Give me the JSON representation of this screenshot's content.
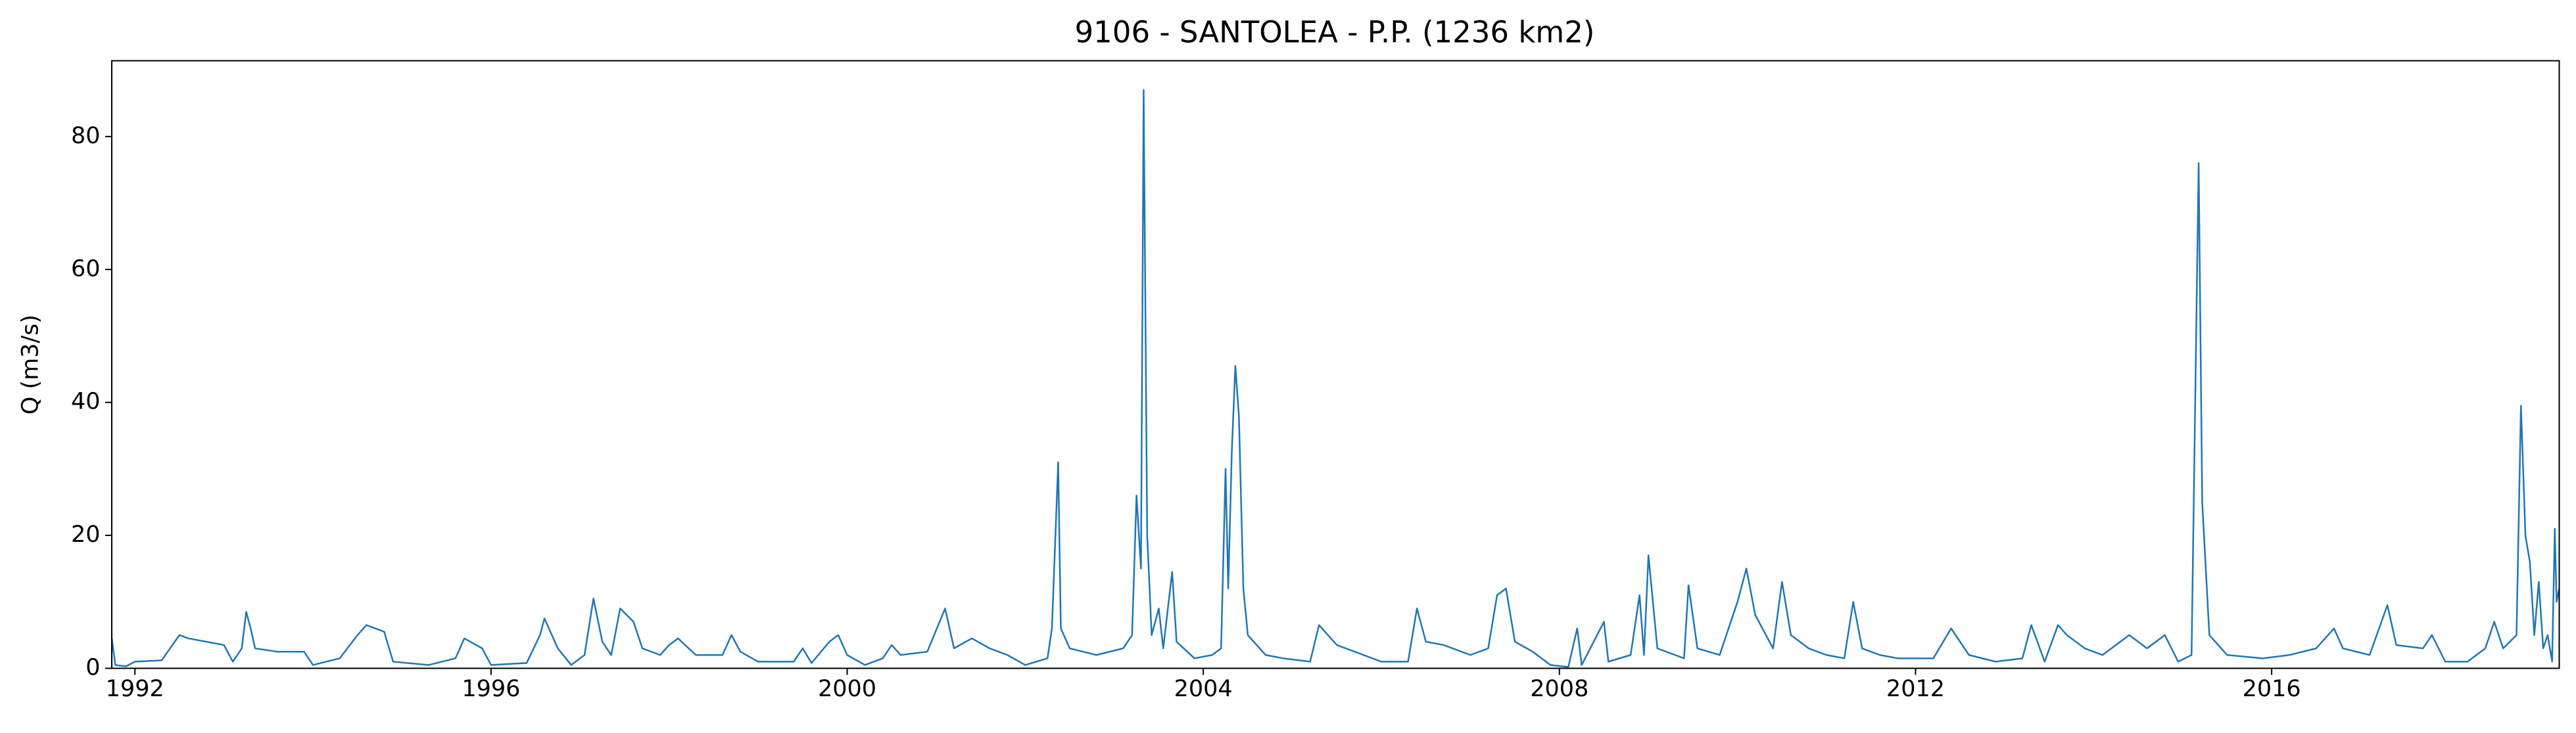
{
  "chart_data": {
    "type": "line",
    "title": "9106 - SANTOLEA - P.P. (1236 km2)",
    "ylabel": "Q (m3/s)",
    "xlim": [
      1991.74,
      2019.23
    ],
    "xticks": [
      1992,
      1996,
      2000,
      2004,
      2008,
      2012,
      2016
    ],
    "ylim": [
      0,
      91.4
    ],
    "yticks": [
      0,
      20,
      40,
      60,
      80
    ],
    "grid": false,
    "series": [
      {
        "name": "Q",
        "color": "#1f77b4",
        "x": [
          1991.74,
          1991.78,
          1991.9,
          1992.0,
          1992.3,
          1992.5,
          1992.6,
          1992.8,
          1993.0,
          1993.1,
          1993.2,
          1993.25,
          1993.3,
          1993.35,
          1993.6,
          1993.9,
          1994.0,
          1994.3,
          1994.5,
          1994.6,
          1994.8,
          1994.9,
          1995.3,
          1995.6,
          1995.7,
          1995.9,
          1996.0,
          1996.4,
          1996.55,
          1996.6,
          1996.75,
          1996.9,
          1997.05,
          1997.15,
          1997.25,
          1997.35,
          1997.45,
          1997.6,
          1997.7,
          1997.9,
          1998.0,
          1998.1,
          1998.3,
          1998.6,
          1998.7,
          1998.8,
          1999.0,
          1999.4,
          1999.5,
          1999.6,
          1999.8,
          1999.9,
          2000.0,
          2000.2,
          2000.4,
          2000.5,
          2000.6,
          2000.9,
          2001.1,
          2001.2,
          2001.4,
          2001.6,
          2001.8,
          2002.0,
          2002.25,
          2002.3,
          2002.37,
          2002.4,
          2002.5,
          2002.8,
          2003.1,
          2003.2,
          2003.25,
          2003.3,
          2003.33,
          2003.37,
          2003.42,
          2003.5,
          2003.55,
          2003.65,
          2003.7,
          2003.9,
          2004.1,
          2004.2,
          2004.25,
          2004.28,
          2004.32,
          2004.36,
          2004.4,
          2004.45,
          2004.5,
          2004.7,
          2004.9,
          2005.2,
          2005.3,
          2005.5,
          2005.7,
          2006.0,
          2006.3,
          2006.4,
          2006.5,
          2006.7,
          2007.0,
          2007.2,
          2007.3,
          2007.4,
          2007.5,
          2007.7,
          2007.9,
          2008.1,
          2008.2,
          2008.25,
          2008.5,
          2008.55,
          2008.8,
          2008.9,
          2008.95,
          2009.0,
          2009.1,
          2009.4,
          2009.45,
          2009.55,
          2009.8,
          2010.0,
          2010.1,
          2010.2,
          2010.4,
          2010.5,
          2010.6,
          2010.8,
          2011.0,
          2011.2,
          2011.3,
          2011.4,
          2011.6,
          2011.8,
          2012.2,
          2012.4,
          2012.6,
          2012.9,
          2013.2,
          2013.3,
          2013.45,
          2013.6,
          2013.7,
          2013.9,
          2014.1,
          2014.4,
          2014.6,
          2014.8,
          2014.95,
          2015.1,
          2015.18,
          2015.22,
          2015.3,
          2015.5,
          2015.9,
          2016.2,
          2016.5,
          2016.7,
          2016.8,
          2017.1,
          2017.3,
          2017.4,
          2017.7,
          2017.8,
          2017.95,
          2018.2,
          2018.4,
          2018.5,
          2018.6,
          2018.75,
          2018.8,
          2018.85,
          2018.9,
          2018.95,
          2019.0,
          2019.05,
          2019.1,
          2019.15,
          2019.18,
          2019.2,
          2019.23
        ],
        "values": [
          4.5,
          0.5,
          0.3,
          1,
          1.2,
          5,
          4.5,
          4,
          3.5,
          1,
          3,
          8.5,
          6,
          3,
          2.5,
          2.5,
          0.5,
          1.5,
          5,
          6.5,
          5.5,
          1,
          0.5,
          1.5,
          4.5,
          3,
          0.5,
          0.8,
          5,
          7.5,
          3,
          0.5,
          2,
          10.5,
          4,
          2,
          9,
          7,
          3,
          2,
          3.5,
          4.5,
          2,
          2,
          5,
          2.5,
          1,
          1,
          3,
          0.8,
          4,
          5,
          2,
          0.5,
          1.5,
          3.5,
          2,
          2.5,
          9,
          3,
          4.5,
          3,
          2,
          0.5,
          1.5,
          6,
          31,
          6,
          3,
          2,
          3,
          5,
          26,
          15,
          87,
          20,
          5,
          9,
          3,
          14.5,
          4,
          1.5,
          2,
          3,
          30,
          12,
          32.5,
          45.5,
          38,
          12,
          5,
          2,
          1.5,
          1,
          6.5,
          3.5,
          2.5,
          1,
          1,
          9,
          4,
          3.5,
          2,
          3,
          11,
          12,
          4,
          2.5,
          0.5,
          0.2,
          6,
          0.5,
          7,
          1,
          2,
          11,
          2,
          17,
          3,
          1.5,
          12.5,
          3,
          2,
          10,
          15,
          8,
          3,
          13,
          5,
          3,
          2,
          1.5,
          10,
          3,
          2,
          1.5,
          1.5,
          6,
          2,
          1,
          1.5,
          6.5,
          1,
          6.5,
          5,
          3,
          2,
          5,
          3,
          5,
          1,
          2,
          76,
          25,
          5,
          2,
          1.5,
          2,
          3,
          6,
          3,
          2,
          9.5,
          3.5,
          3,
          5,
          1,
          1,
          3,
          7,
          3,
          5,
          39.5,
          20,
          16,
          5,
          13,
          3,
          5,
          1,
          21,
          10,
          12
        ]
      }
    ]
  }
}
